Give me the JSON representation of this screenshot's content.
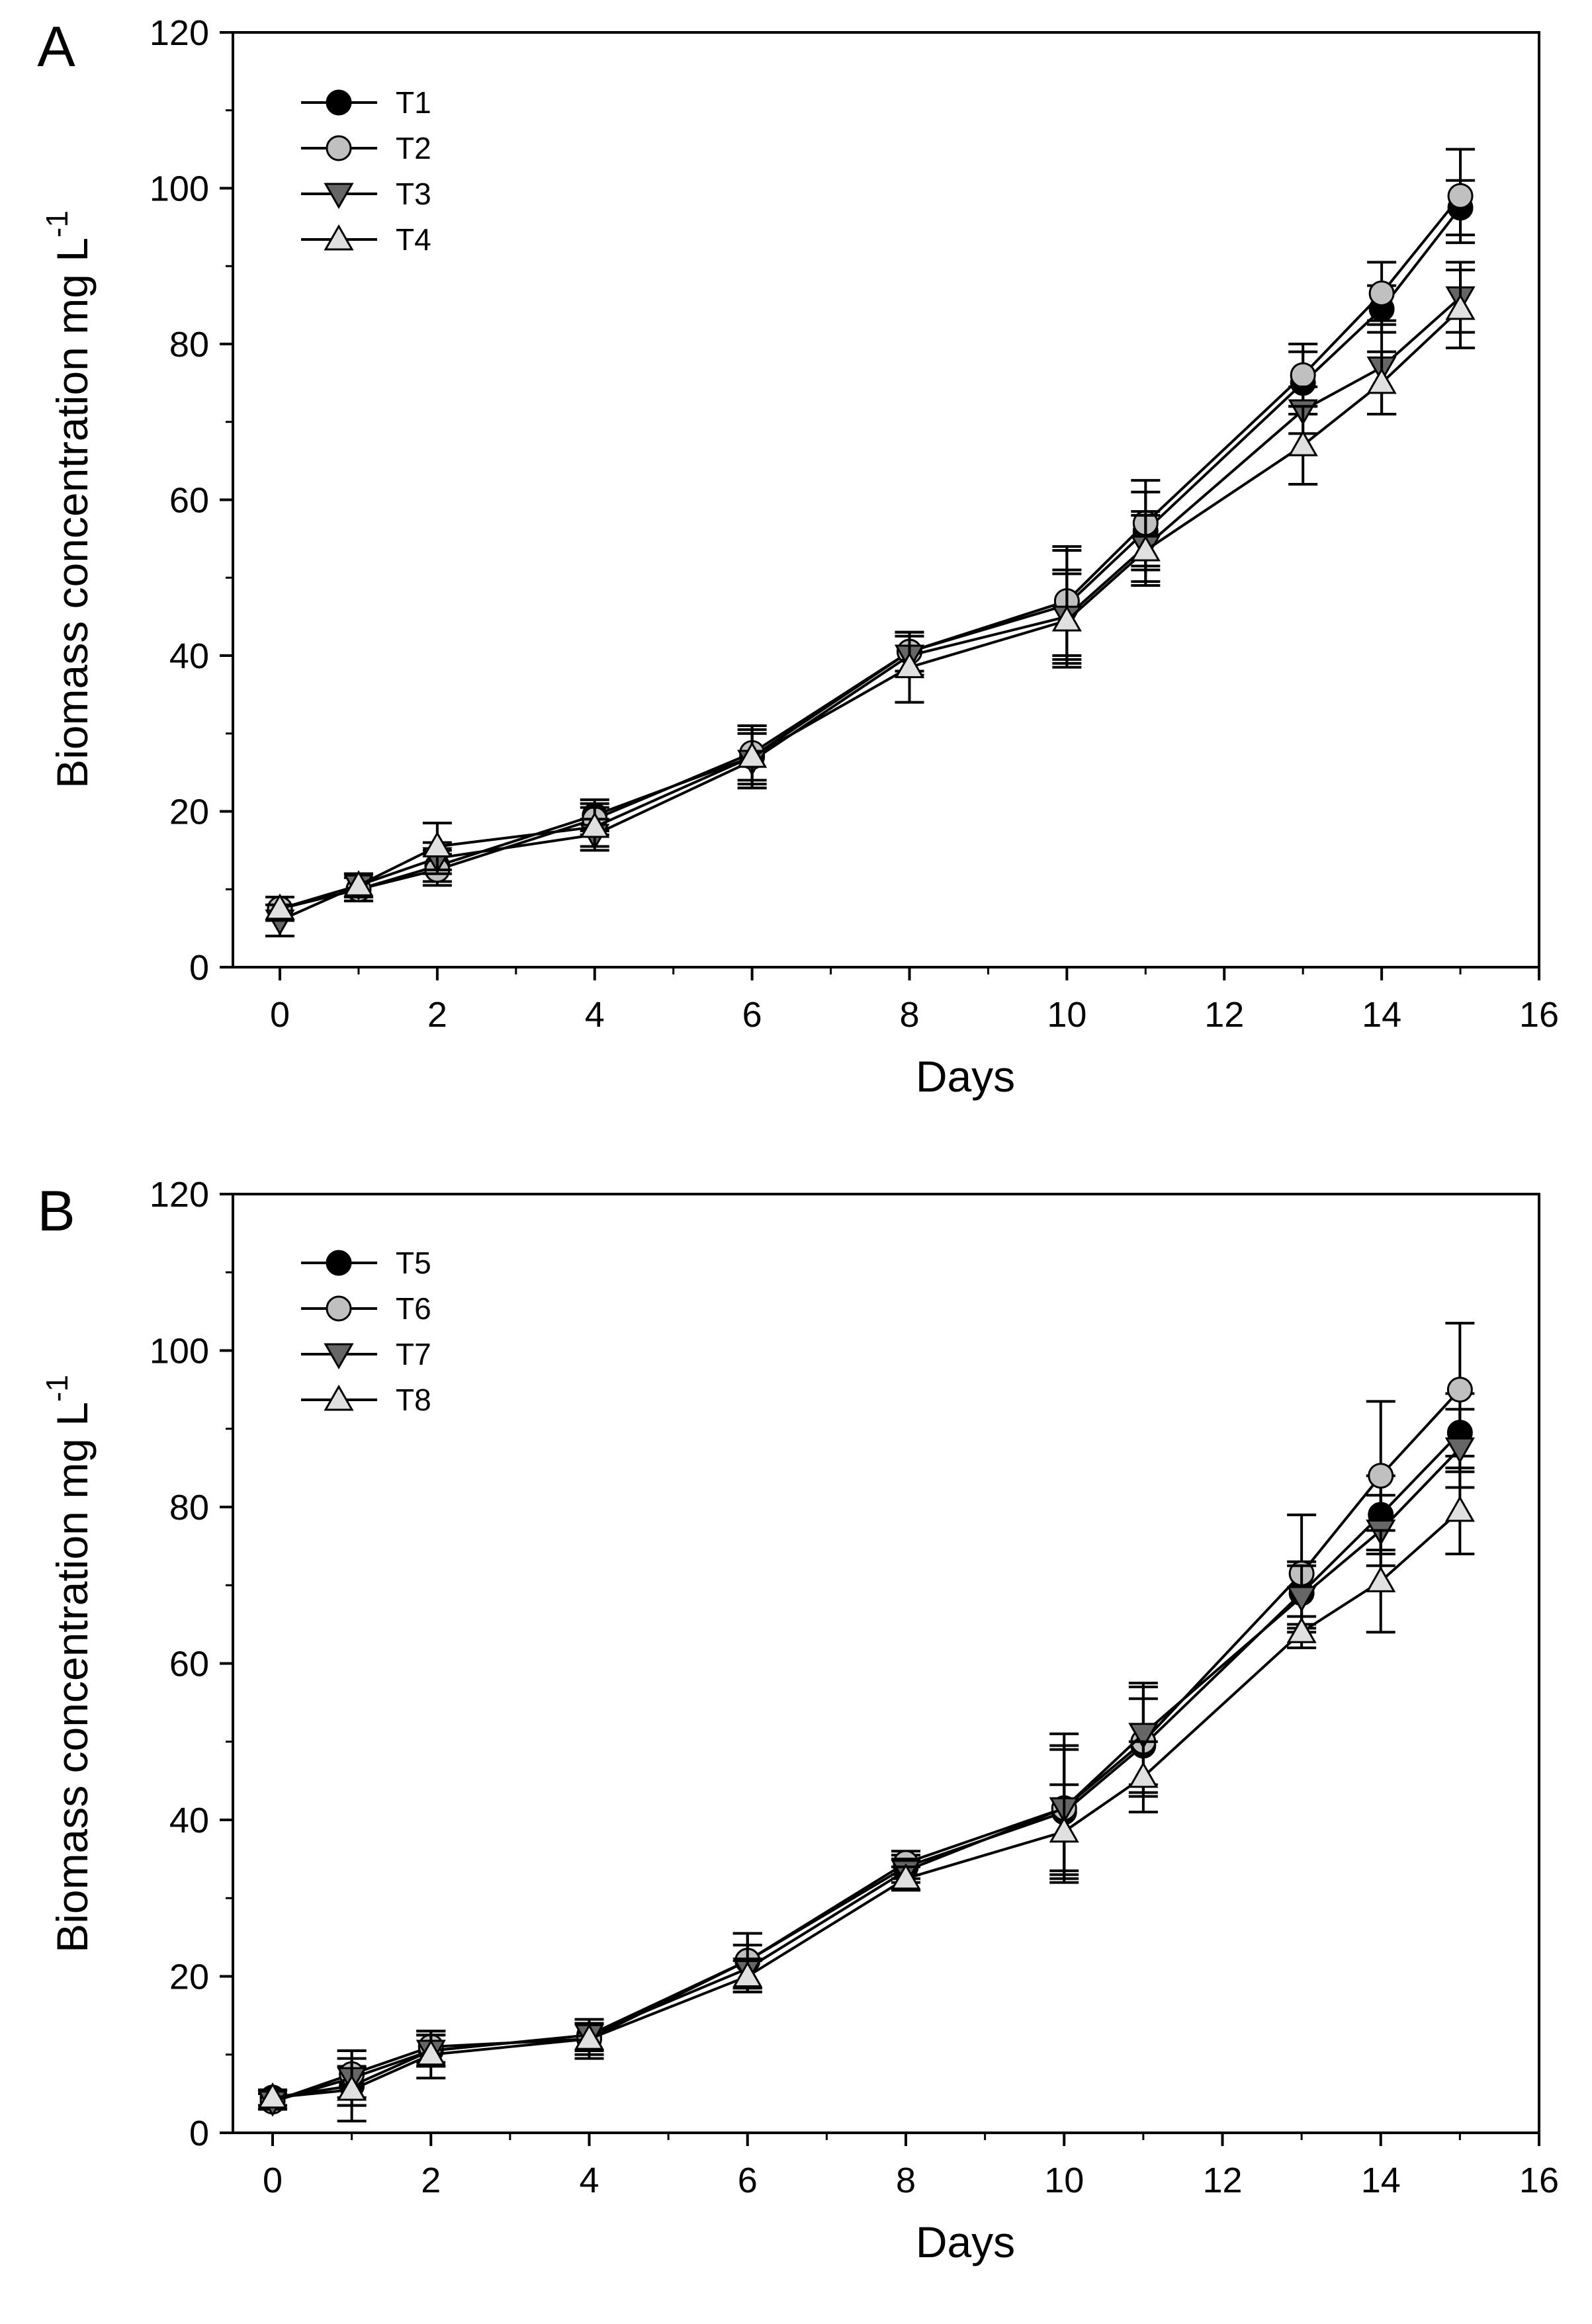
{
  "chart_data": [
    {
      "type": "line",
      "panel_label": "A",
      "xlabel": "Days",
      "ylabel": "Biomass concentration mg L",
      "ylabel_sup": "-1",
      "xlim": [
        -0.5,
        16
      ],
      "ylim": [
        0,
        120
      ],
      "xticks": [
        0,
        2,
        4,
        6,
        8,
        10,
        12,
        14,
        16
      ],
      "yticks": [
        0,
        20,
        40,
        60,
        80,
        100,
        120
      ],
      "legend_position": "top-left",
      "x": [
        0,
        1,
        2,
        4,
        6,
        8,
        10,
        11,
        13,
        14,
        15
      ],
      "series": [
        {
          "name": "T1",
          "marker": "circle",
          "color": "#000000",
          "values": [
            7.5,
            10,
            13,
            19.5,
            27,
            40.5,
            46.5,
            56,
            75,
            84.5,
            97.5
          ],
          "errors": [
            1.5,
            1.5,
            2,
            2,
            3.5,
            2.5,
            7,
            5,
            4,
            3,
            3.5
          ]
        },
        {
          "name": "T2",
          "marker": "circle",
          "color": "#c0c0c0",
          "values": [
            7.5,
            10,
            12.5,
            19,
            27.5,
            40.5,
            47,
            57,
            76,
            86.5,
            99
          ],
          "errors": [
            1.5,
            1.5,
            2,
            2,
            3.5,
            2.5,
            7,
            5.5,
            4,
            4,
            6
          ]
        },
        {
          "name": "T3",
          "marker": "triangle-down",
          "color": "#666666",
          "values": [
            6,
            10.5,
            14,
            17,
            26.5,
            40,
            45,
            54,
            71.5,
            77,
            86
          ],
          "errors": [
            2,
            1.5,
            2,
            2,
            3.5,
            2.5,
            6,
            4.5,
            3,
            6,
            4.5
          ]
        },
        {
          "name": "T4",
          "marker": "triangle-up",
          "color": "#e0e0e0",
          "values": [
            7.5,
            10.5,
            15.5,
            18,
            27,
            38.5,
            44.5,
            53.5,
            67,
            75,
            84.5
          ],
          "errors": [
            1.5,
            1.5,
            3,
            2.5,
            4,
            4.5,
            6,
            4.5,
            5,
            4,
            5
          ]
        }
      ]
    },
    {
      "type": "line",
      "panel_label": "B",
      "xlabel": "Days",
      "ylabel": "Biomass concentration mg L",
      "ylabel_sup": "-1",
      "xlim": [
        -0.5,
        16
      ],
      "ylim": [
        0,
        120
      ],
      "xticks": [
        0,
        2,
        4,
        6,
        8,
        10,
        12,
        14,
        16
      ],
      "yticks": [
        0,
        20,
        40,
        60,
        80,
        100,
        120
      ],
      "legend_position": "top-left",
      "x": [
        0,
        1,
        2,
        4,
        6,
        8,
        10,
        11,
        13,
        14,
        15
      ],
      "series": [
        {
          "name": "T5",
          "marker": "circle",
          "color": "#000000",
          "values": [
            4.5,
            6,
            10.5,
            12.5,
            22,
            34,
            41,
            49.5,
            69,
            79,
            89.5
          ],
          "errors": [
            1,
            2.5,
            2,
            2,
            3.5,
            1.5,
            8,
            6,
            4,
            5,
            5
          ]
        },
        {
          "name": "T6",
          "marker": "circle",
          "color": "#c0c0c0",
          "values": [
            4,
            7.5,
            11,
            12,
            22,
            34.5,
            41.5,
            50,
            71.5,
            84,
            95
          ],
          "errors": [
            1,
            3,
            2,
            2,
            3.5,
            1.5,
            9.5,
            7,
            7.5,
            9.5,
            8.5
          ]
        },
        {
          "name": "T7",
          "marker": "triangle-down",
          "color": "#666666",
          "values": [
            4,
            7,
            10.5,
            12.5,
            21,
            33.5,
            41.5,
            51,
            68.5,
            77,
            87.5
          ],
          "errors": [
            1,
            3.5,
            2,
            2,
            3,
            1.5,
            8,
            6.5,
            4,
            4.5,
            5
          ]
        },
        {
          "name": "T8",
          "marker": "triangle-up",
          "color": "#e0e0e0",
          "values": [
            4.5,
            5.5,
            10,
            12,
            20,
            32.5,
            38.5,
            45.5,
            64,
            70.5,
            79.5
          ],
          "errors": [
            1,
            4,
            3,
            2.5,
            2,
            1.5,
            6,
            4.5,
            2,
            6.5,
            5.5
          ]
        }
      ]
    }
  ]
}
